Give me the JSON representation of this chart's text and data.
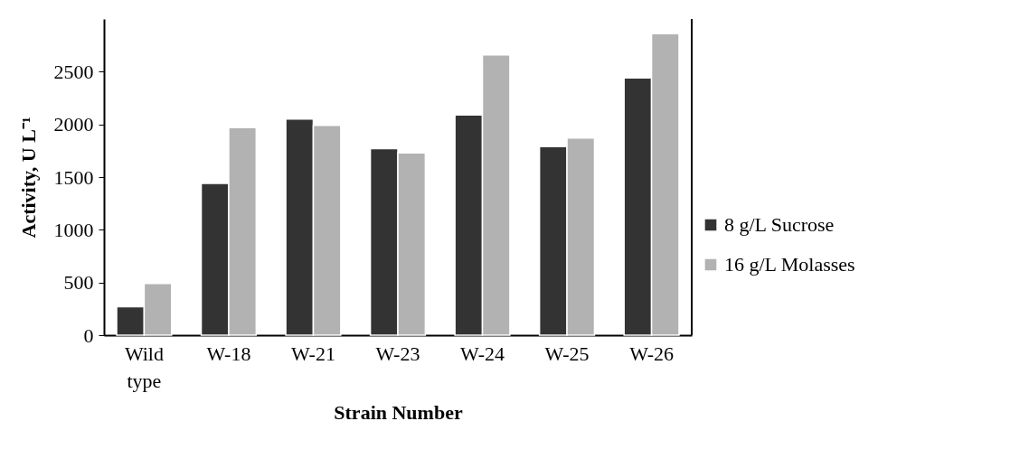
{
  "chart_data": {
    "type": "bar",
    "xlabel": "Strain Number",
    "ylabel": "Activity, U L⁻¹",
    "categories": [
      "Wild type",
      "W-18",
      "W-21",
      "W-23",
      "W-24",
      "W-25",
      "W-26"
    ],
    "series": [
      {
        "name": "8 g/L Sucrose",
        "color": "#333333",
        "values": [
          270,
          1440,
          2050,
          1770,
          2090,
          1790,
          2440
        ]
      },
      {
        "name": "16 g/L Molasses",
        "color": "#b2b2b2",
        "values": [
          490,
          1970,
          1990,
          1730,
          2660,
          1870,
          2860
        ]
      }
    ],
    "ylim": [
      0,
      3000
    ],
    "yticks": [
      0,
      500,
      1000,
      1500,
      2000,
      2500
    ],
    "grid": false,
    "legend": "right"
  }
}
